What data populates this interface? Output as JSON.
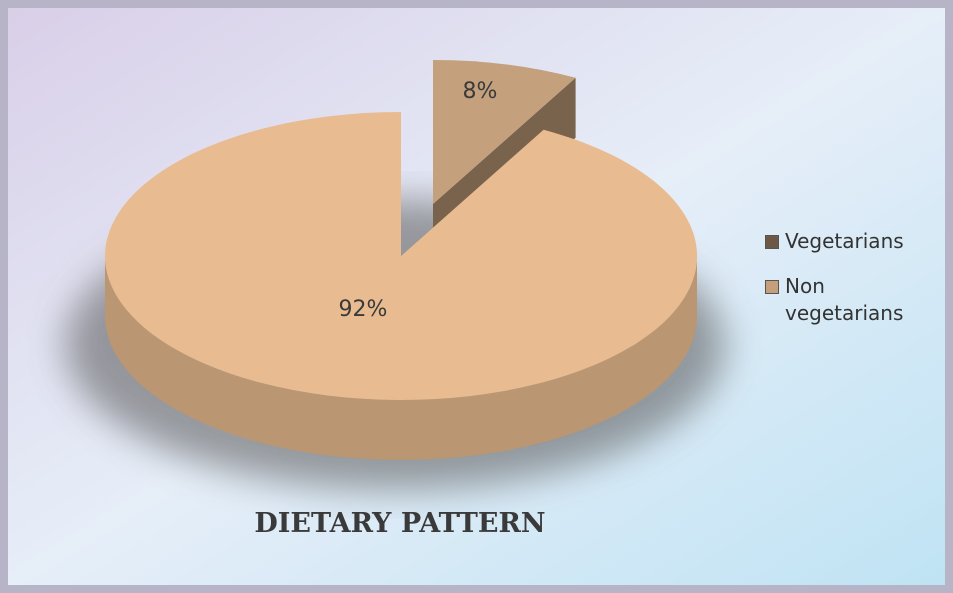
{
  "chart_data": {
    "type": "pie",
    "title": "DIETARY PATTERN",
    "categories": [
      "Vegetarians",
      "Non vegetarians"
    ],
    "values": [
      8,
      92
    ],
    "value_labels": [
      "8%",
      "92%"
    ],
    "colors": [
      "#c4a07c",
      "#e9bb90"
    ],
    "legend": "right"
  }
}
